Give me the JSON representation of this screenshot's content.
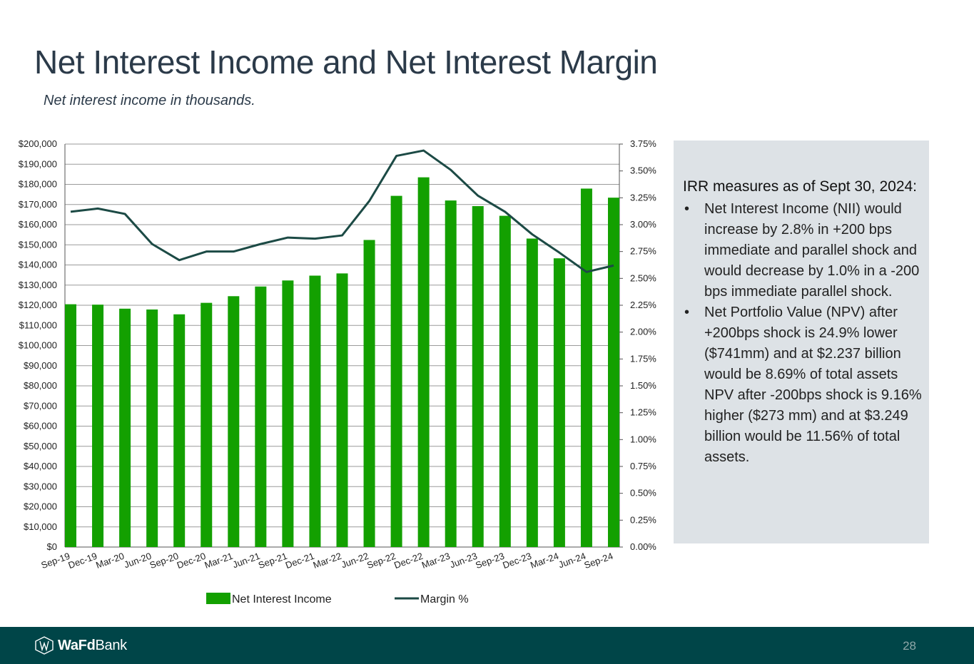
{
  "slide": {
    "title": "Net Interest Income and Net Interest Margin",
    "subtitle": "Net interest income in thousands.",
    "page_number": "28"
  },
  "brand": {
    "logo_bold": "WaFd",
    "logo_regular": "Bank",
    "footer_color": "#004548"
  },
  "irr": {
    "heading": "IRR measures as of Sept 30, 2024:",
    "bullets": [
      "Net Interest Income (NII) would increase by 2.8% in +200 bps immediate and parallel shock and would decrease by 1.0% in a -200 bps immediate parallel shock.",
      "Net Portfolio Value (NPV) after +200bps shock is 24.9% lower ($741mm) and at $2.237 billion would be 8.69% of total assets   NPV after -200bps shock is 9.16% higher ($273 mm) and at $3.249 billion would be 11.56% of total assets."
    ]
  },
  "chart_data": {
    "type": "bar",
    "title": "",
    "categories": [
      "Sep-19",
      "Dec-19",
      "Mar-20",
      "Jun-20",
      "Sep-20",
      "Dec-20",
      "Mar-21",
      "Jun-21",
      "Sep-21",
      "Dec-21",
      "Mar-22",
      "Jun-22",
      "Sep-22",
      "Dec-22",
      "Mar-23",
      "Jun-23",
      "Sep-23",
      "Dec-23",
      "Mar-24",
      "Jun-24",
      "Sep-24"
    ],
    "series": [
      {
        "name": "Net Interest Income",
        "type": "bar",
        "axis": "left",
        "color": "#13a000",
        "values": [
          120500,
          120300,
          118300,
          117900,
          115500,
          121200,
          124500,
          129300,
          132300,
          134700,
          135800,
          152400,
          174300,
          183500,
          172000,
          169200,
          164400,
          153100,
          143300,
          177900,
          173400
        ]
      },
      {
        "name": "Margin %",
        "type": "line",
        "axis": "right",
        "color": "#1c4a45",
        "values": [
          3.12,
          3.15,
          3.1,
          2.82,
          2.67,
          2.75,
          2.75,
          2.82,
          2.88,
          2.87,
          2.9,
          3.22,
          3.64,
          3.69,
          3.51,
          3.27,
          3.12,
          2.91,
          2.74,
          2.56,
          2.62
        ]
      }
    ],
    "y_left": {
      "min": 0,
      "max": 200000,
      "step": 10000,
      "tick_labels": [
        "$0",
        "$10,000",
        "$20,000",
        "$30,000",
        "$40,000",
        "$50,000",
        "$60,000",
        "$70,000",
        "$80,000",
        "$90,000",
        "$100,000",
        "$110,000",
        "$120,000",
        "$130,000",
        "$140,000",
        "$150,000",
        "$160,000",
        "$170,000",
        "$180,000",
        "$190,000",
        "$200,000"
      ]
    },
    "y_right": {
      "min": 0,
      "max": 3.75,
      "step": 0.25,
      "tick_labels": [
        "0.00%",
        "0.25%",
        "0.50%",
        "0.75%",
        "1.00%",
        "1.25%",
        "1.50%",
        "1.75%",
        "2.00%",
        "2.25%",
        "2.50%",
        "2.75%",
        "3.00%",
        "3.25%",
        "3.50%",
        "3.75%"
      ]
    },
    "grid": true,
    "legend": {
      "position": "bottom",
      "items": [
        "Net Interest Income",
        "Margin %"
      ]
    }
  }
}
